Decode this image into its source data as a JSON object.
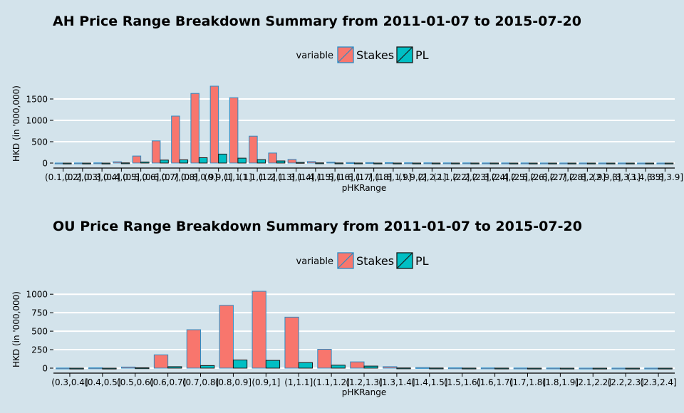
{
  "colors": {
    "background": "#d3e3eb",
    "stakes": "#f8766d",
    "pl": "#00bfc4",
    "bar_edge": "#2b8cc4",
    "grid": "#ffffff"
  },
  "chart_data": [
    {
      "type": "bar",
      "title": "AH Price Range Breakdown Summary from 2011-01-07 to 2015-07-20",
      "xlabel": "pHKRange",
      "ylabel": "HKD (in '000,000)",
      "ylim": [
        0,
        1850
      ],
      "yticks": [
        0,
        500,
        1000,
        1500
      ],
      "grid": "horizontal",
      "legend": {
        "title": "variable",
        "position": "top-center",
        "entries": [
          "Stakes",
          "PL"
        ]
      },
      "categories": [
        "(0.1,0.2]",
        "(0.2,0.3]",
        "(0.3,0.4]",
        "(0.4,0.5]",
        "(0.5,0.6]",
        "(0.6,0.7]",
        "(0.7,0.8]",
        "(0.8,0.9]",
        "(0.9,1]",
        "(1,1.1]",
        "(1.1,1.2]",
        "(1.2,1.3]",
        "(1.3,1.4]",
        "(1.4,1.5]",
        "(1.5,1.6]",
        "(1.6,1.7]",
        "(1.7,1.8]",
        "(1.8,1.9]",
        "(1.9,2]",
        "(2,2.1]",
        "(2.1,2.2]",
        "(2.2,2.3]",
        "(2.3,2.4]",
        "(2.4,2.5]",
        "(2.5,2.6]",
        "(2.6,2.7]",
        "(2.7,2.8]",
        "(2.8,2.9]",
        "(2.9,3]",
        "(3,3.1]",
        "(3.4,3.5]",
        "(3.8,3.9]"
      ],
      "series": [
        {
          "name": "Stakes",
          "values": [
            2,
            3,
            5,
            30,
            165,
            520,
            1100,
            1630,
            1800,
            1530,
            630,
            235,
            85,
            35,
            20,
            12,
            10,
            8,
            6,
            5,
            4,
            4,
            3,
            3,
            3,
            2,
            2,
            2,
            2,
            2,
            1,
            1
          ]
        },
        {
          "name": "PL",
          "values": [
            -1,
            -1,
            -2,
            5,
            25,
            70,
            75,
            125,
            210,
            115,
            80,
            50,
            15,
            5,
            3,
            2,
            1,
            1,
            1,
            1,
            1,
            1,
            1,
            0,
            0,
            0,
            0,
            0,
            0,
            0,
            0,
            0
          ]
        }
      ]
    },
    {
      "type": "bar",
      "title": "OU Price Range Breakdown Summary from 2011-01-07 to 2015-07-20",
      "xlabel": "pHKRange",
      "ylabel": "HKD (in '000,000)",
      "ylim": [
        0,
        1050
      ],
      "yticks": [
        0,
        250,
        500,
        750,
        1000
      ],
      "grid": "horizontal",
      "legend": {
        "title": "variable",
        "position": "top-center",
        "entries": [
          "Stakes",
          "PL"
        ]
      },
      "categories": [
        "(0.3,0.4]",
        "(0.4,0.5]",
        "(0.5,0.6]",
        "(0.6,0.7]",
        "(0.7,0.8]",
        "(0.8,0.9]",
        "(0.9,1]",
        "(1,1.1]",
        "(1.1,1.2]",
        "(1.2,1.3]",
        "(1.3,1.4]",
        "(1.4,1.5]",
        "(1.5,1.6]",
        "(1.6,1.7]",
        "(1.7,1.8]",
        "(1.8,1.9]",
        "(2.1,2.2]",
        "(2.2,2.3]",
        "(2.3,2.4]"
      ],
      "series": [
        {
          "name": "Stakes",
          "values": [
            2,
            4,
            15,
            180,
            520,
            850,
            1040,
            690,
            255,
            85,
            20,
            8,
            4,
            3,
            2,
            2,
            1,
            1,
            1
          ]
        },
        {
          "name": "PL",
          "values": [
            -1,
            -2,
            5,
            20,
            35,
            110,
            105,
            75,
            40,
            28,
            3,
            2,
            1,
            1,
            0,
            0,
            0,
            0,
            0
          ]
        }
      ]
    }
  ]
}
